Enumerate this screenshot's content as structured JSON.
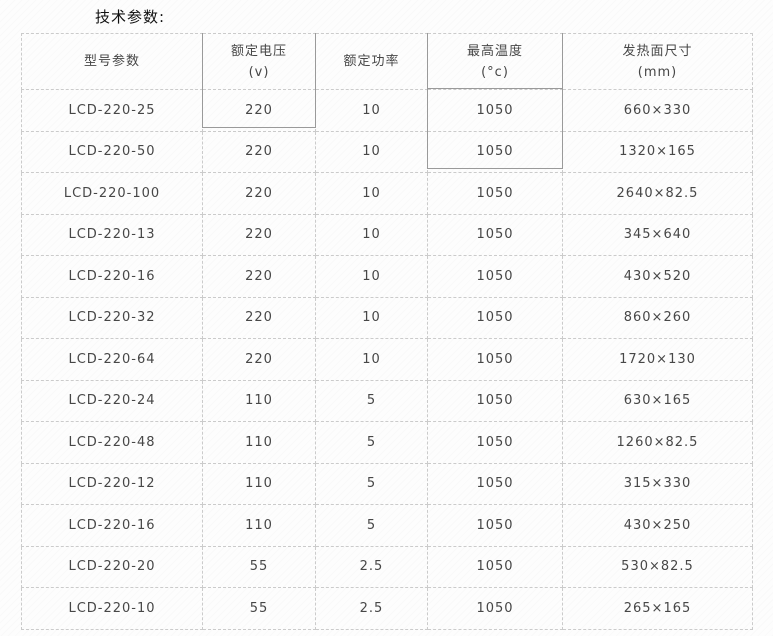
{
  "page_title": "技术参数:",
  "table": {
    "column_keys": [
      "model",
      "voltage",
      "power",
      "max_temp",
      "surface_size"
    ],
    "columns": [
      {
        "label": "型号参数",
        "sub": ""
      },
      {
        "label": "额定电压",
        "sub": "(v)"
      },
      {
        "label": "额定功率",
        "sub": ""
      },
      {
        "label": "最高温度",
        "sub": "(°c)"
      },
      {
        "label": "发热面尺寸",
        "sub": "(mm)"
      }
    ],
    "rows": [
      [
        "LCD-220-25",
        "220",
        "10",
        "1050",
        "660×330"
      ],
      [
        "LCD-220-50",
        "220",
        "10",
        "1050",
        "1320×165"
      ],
      [
        "LCD-220-100",
        "220",
        "10",
        "1050",
        "2640×82.5"
      ],
      [
        "LCD-220-13",
        "220",
        "10",
        "1050",
        "345×640"
      ],
      [
        "LCD-220-16",
        "220",
        "10",
        "1050",
        "430×520"
      ],
      [
        "LCD-220-32",
        "220",
        "10",
        "1050",
        "860×260"
      ],
      [
        "LCD-220-64",
        "220",
        "10",
        "1050",
        "1720×130"
      ],
      [
        "LCD-220-24",
        "110",
        "5",
        "1050",
        "630×165"
      ],
      [
        "LCD-220-48",
        "110",
        "5",
        "1050",
        "1260×82.5"
      ],
      [
        "LCD-220-12",
        "110",
        "5",
        "1050",
        "315×330"
      ],
      [
        "LCD-220-16",
        "110",
        "5",
        "1050",
        "430×250"
      ],
      [
        "LCD-220-20",
        "55",
        "2.5",
        "1050",
        "530×82.5"
      ],
      [
        "LCD-220-10",
        "55",
        "2.5",
        "1050",
        "265×165"
      ]
    ]
  },
  "chart_data": {
    "type": "table",
    "title": "技术参数:",
    "columns": [
      "型号参数",
      "额定电压 (v)",
      "额定功率",
      "最高温度 (°c)",
      "发热面尺寸 (mm)"
    ],
    "rows": [
      [
        "LCD-220-25",
        220,
        10,
        1050,
        "660×330"
      ],
      [
        "LCD-220-50",
        220,
        10,
        1050,
        "1320×165"
      ],
      [
        "LCD-220-100",
        220,
        10,
        1050,
        "2640×82.5"
      ],
      [
        "LCD-220-13",
        220,
        10,
        1050,
        "345×640"
      ],
      [
        "LCD-220-16",
        220,
        10,
        1050,
        "430×520"
      ],
      [
        "LCD-220-32",
        220,
        10,
        1050,
        "860×260"
      ],
      [
        "LCD-220-64",
        220,
        10,
        1050,
        "1720×130"
      ],
      [
        "LCD-220-24",
        110,
        5,
        1050,
        "630×165"
      ],
      [
        "LCD-220-48",
        110,
        5,
        1050,
        "1260×82.5"
      ],
      [
        "LCD-220-12",
        110,
        5,
        1050,
        "315×330"
      ],
      [
        "LCD-220-16",
        110,
        5,
        1050,
        "430×250"
      ],
      [
        "LCD-220-20",
        55,
        2.5,
        1050,
        "530×82.5"
      ],
      [
        "LCD-220-10",
        55,
        2.5,
        1050,
        "265×165"
      ]
    ]
  },
  "colors": {
    "grid_dashed": "#cbcbcb",
    "grid_solid_highlight": "#9a9a9a",
    "text": "#474747",
    "title_text": "#111111",
    "background": "#fdfdfd"
  }
}
